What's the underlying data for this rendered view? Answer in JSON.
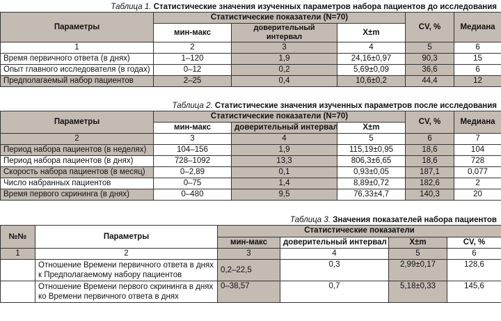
{
  "table1": {
    "caption_num": "Таблица 1.",
    "caption_title": "Статистические значения изученных параметров набора пациентов до исследования",
    "h_params": "Параметры",
    "h_stats": "Статистические показатели (N=70)",
    "h_minmax": "мин-макс",
    "h_ci_line1": "доверительный",
    "h_ci_line2": "интервал",
    "h_xm": "X±m",
    "h_cv": "CV, %",
    "h_median": "Медиана",
    "colnums": [
      "1",
      "2",
      "3",
      "4",
      "5",
      "6"
    ],
    "rows": [
      {
        "param": "Время первичного ответа (в днях)",
        "minmax": "1–120",
        "ci": "1,9",
        "xm": "24,16±0,97",
        "cv": "90,3",
        "median": "15"
      },
      {
        "param": "Опыт главного исследователя (в годах)",
        "minmax": "0–12",
        "ci": "0,2",
        "xm": "5,69±0,09",
        "cv": "36,6",
        "median": "6"
      },
      {
        "param": "Предполагаемый набор пациентов",
        "minmax": "2–25",
        "ci": "0,4",
        "xm": "10,6±0,2",
        "cv": "44,4",
        "median": "12"
      }
    ]
  },
  "table2": {
    "caption_num": "Таблица 2.",
    "caption_title": "Статистические значения изученных параметров после исследования",
    "h_params": "Параметры",
    "h_stats": "Статистические показатели (N=70)",
    "h_minmax": "мин-макс",
    "h_ci": "доверительный интервал",
    "h_xm": "X±m",
    "h_cv": "CV, %",
    "h_median": "Медиана",
    "colnums": [
      "2",
      "3",
      "4",
      "5",
      "6",
      "7"
    ],
    "rows": [
      {
        "param": "Период набора пациентов (в неделях)",
        "minmax": "104–156",
        "ci": "1,9",
        "xm": "115,19±0,95",
        "cv": "18,6",
        "median": "104"
      },
      {
        "param": "Период набора пациентов (в днях)",
        "minmax": "728–1092",
        "ci": "13,3",
        "xm": "806,3±6,65",
        "cv": "18,6",
        "median": "728"
      },
      {
        "param": "Скорость набора пациентов (в месяц)",
        "minmax": "0–2,89",
        "ci": "0,1",
        "xm": "0,93±0,05",
        "cv": "187,1",
        "median": "0,077"
      },
      {
        "param": "Число набранных пациентов",
        "minmax": "0–75",
        "ci": "1,4",
        "xm": "8,89±0,72",
        "cv": "182,6",
        "median": "2"
      },
      {
        "param": "Время первого скрининга (в днях)",
        "minmax": "0–480",
        "ci": "9,5",
        "xm": "76,33±4,7",
        "cv": "140,3",
        "median": "20"
      }
    ]
  },
  "table3": {
    "caption_num": "Таблица 3.",
    "caption_title": "Значения показателей набора пациентов",
    "h_no": "№№",
    "h_params": "Параметры",
    "h_stats": "Статистические показатели",
    "h_minmax": "мин-макс",
    "h_ci": "доверительный интервал",
    "h_xm": "X±m",
    "h_cv": "CV, %",
    "colnums": [
      "1",
      "2",
      "3",
      "4",
      "5",
      "6"
    ],
    "rows": [
      {
        "param_line1": "Отношение Времени первичного ответа в днях",
        "param_line2": "к Предполагаемому набору пациентов",
        "minmax": "0,2–22,5",
        "ci": "0,3",
        "xm": "2,99±0,17",
        "cv": "128,6"
      },
      {
        "param_line1": "Отношение Времени первого скрининга в днях",
        "param_line2": "ко Времени первичного ответа в днях",
        "minmax": "0–38,57",
        "ci": "0,7",
        "xm": "5,18±0,33",
        "cv": "145,6"
      }
    ]
  }
}
